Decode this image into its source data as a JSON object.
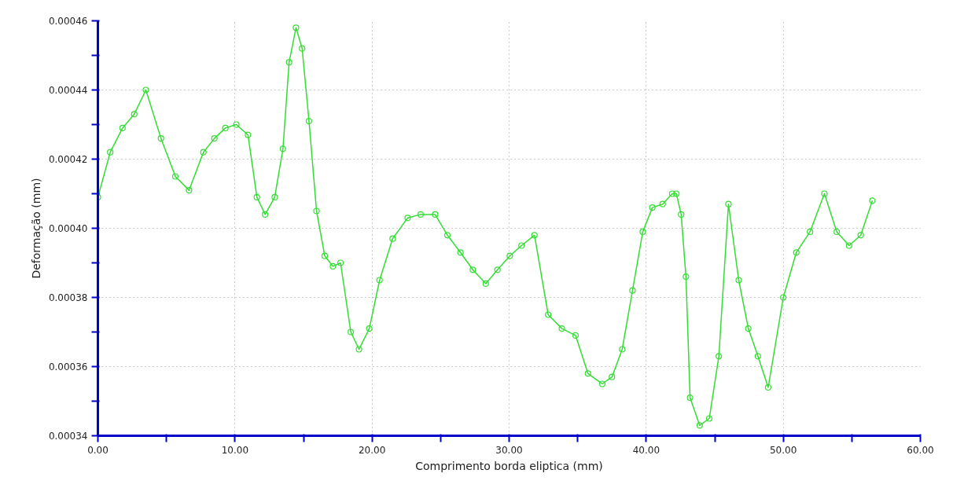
{
  "chart_data": {
    "type": "line",
    "xlabel": "Comprimento borda eliptica (mm)",
    "ylabel": "Deformação (mm)",
    "x": [
      0,
      0.9,
      1.8,
      2.65,
      3.5,
      4.6,
      5.65,
      6.65,
      7.7,
      8.5,
      9.3,
      10.1,
      10.95,
      11.6,
      12.2,
      12.9,
      13.5,
      13.95,
      14.45,
      14.9,
      15.4,
      15.95,
      16.55,
      17.15,
      17.7,
      18.45,
      19.05,
      19.8,
      20.55,
      21.5,
      22.6,
      23.55,
      24.6,
      25.5,
      26.45,
      27.35,
      28.3,
      29.15,
      30.05,
      30.9,
      31.85,
      32.85,
      33.85,
      34.85,
      35.75,
      36.8,
      37.5,
      38.25,
      39.0,
      39.75,
      40.45,
      41.2,
      41.9,
      42.2,
      42.55,
      42.9,
      43.2,
      43.9,
      44.6,
      45.3,
      46.0,
      46.75,
      47.45,
      48.15,
      48.9,
      50.0,
      50.95,
      51.95,
      53.0,
      53.9,
      54.8,
      55.65,
      56.5
    ],
    "series": [
      {
        "color": "#33dd33",
        "values": [
          0.000409,
          0.000422,
          0.000429,
          0.000433,
          0.00044,
          0.000426,
          0.000415,
          0.000411,
          0.000422,
          0.000426,
          0.000429,
          0.00043,
          0.000427,
          0.000409,
          0.000404,
          0.000409,
          0.000423,
          0.000448,
          0.000458,
          0.000452,
          0.000431,
          0.000405,
          0.000392,
          0.000389,
          0.00039,
          0.00037,
          0.000365,
          0.000371,
          0.000385,
          0.000397,
          0.000403,
          0.000404,
          0.000404,
          0.000398,
          0.000393,
          0.000388,
          0.000384,
          0.000388,
          0.000392,
          0.000395,
          0.000398,
          0.000375,
          0.000371,
          0.000369,
          0.000358,
          0.000355,
          0.000357,
          0.000365,
          0.000382,
          0.000399,
          0.000406,
          0.000407,
          0.00041,
          0.00041,
          0.000404,
          0.000386,
          0.000351,
          0.000343,
          0.000345,
          0.000363,
          0.000407,
          0.000385,
          0.000371,
          0.000363,
          0.000354,
          0.00038,
          0.000393,
          0.000399,
          0.00041,
          0.000399,
          0.000395,
          0.000398,
          0.000408
        ]
      }
    ],
    "xlim": [
      0,
      60
    ],
    "ylim": [
      0.00034,
      0.00046
    ],
    "xticks": [
      {
        "value": 0,
        "label": "0.00"
      },
      {
        "value": 5,
        "label": null
      },
      {
        "value": 10,
        "label": "10.00"
      },
      {
        "value": 15,
        "label": null
      },
      {
        "value": 20,
        "label": "20.00"
      },
      {
        "value": 25,
        "label": null
      },
      {
        "value": 30,
        "label": "30.00"
      },
      {
        "value": 35,
        "label": null
      },
      {
        "value": 40,
        "label": "40.00"
      },
      {
        "value": 45,
        "label": null
      },
      {
        "value": 50,
        "label": "50.00"
      },
      {
        "value": 55,
        "label": null
      },
      {
        "value": 60,
        "label": "60.00"
      }
    ],
    "yticks": [
      {
        "value": 0.00034,
        "label": "0.00034"
      },
      {
        "value": 0.00035,
        "label": null
      },
      {
        "value": 0.00036,
        "label": "0.00036"
      },
      {
        "value": 0.00037,
        "label": null
      },
      {
        "value": 0.00038,
        "label": "0.00038"
      },
      {
        "value": 0.00039,
        "label": null
      },
      {
        "value": 0.0004,
        "label": "0.00040"
      },
      {
        "value": 0.00041,
        "label": null
      },
      {
        "value": 0.00042,
        "label": "0.00042"
      },
      {
        "value": 0.00043,
        "label": null
      },
      {
        "value": 0.00044,
        "label": "0.00044"
      },
      {
        "value": 0.00045,
        "label": null
      },
      {
        "value": 0.00046,
        "label": "0.00046"
      }
    ],
    "grid": true,
    "marker": "circle",
    "line_style": "solid"
  }
}
